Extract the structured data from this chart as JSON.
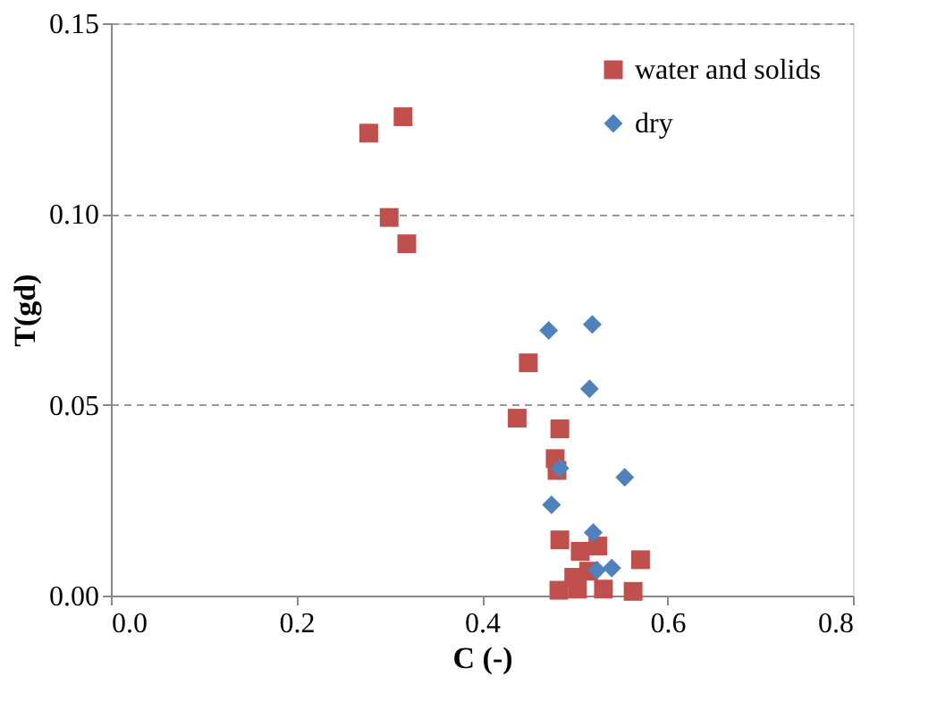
{
  "chart_data": {
    "type": "scatter",
    "xlabel": "C (-)",
    "ylabel": "T(gd)",
    "xlim": [
      0,
      0.8
    ],
    "ylim": [
      0,
      0.15
    ],
    "xticks": [
      {
        "value": 0,
        "label": "0.0"
      },
      {
        "value": 0.2,
        "label": "0.2"
      },
      {
        "value": 0.4,
        "label": "0.4"
      },
      {
        "value": 0.6,
        "label": "0.6"
      },
      {
        "value": 0.8,
        "label": "0.8"
      }
    ],
    "yticks": [
      {
        "value": 0,
        "label": "0.00"
      },
      {
        "value": 0.05,
        "label": "0.05"
      },
      {
        "value": 0.1,
        "label": "0.10"
      },
      {
        "value": 0.15,
        "label": "0.15"
      }
    ],
    "grid": "y",
    "legend": "top right",
    "series": [
      {
        "name": "water and solids",
        "color": "#c0504d",
        "marker": "square",
        "x": [
          0.315,
          0.278,
          0.3,
          0.319,
          0.45,
          0.438,
          0.484,
          0.479,
          0.481,
          0.484,
          0.506,
          0.525,
          0.571,
          0.499,
          0.503,
          0.483,
          0.531,
          0.563,
          0.515
        ],
        "values": [
          0.1255,
          0.1212,
          0.0991,
          0.0922,
          0.061,
          0.0465,
          0.0437,
          0.0359,
          0.0328,
          0.0146,
          0.0116,
          0.013,
          0.0094,
          0.0048,
          0.0017,
          0.0014,
          0.0017,
          0.0011,
          0.0064
        ]
      },
      {
        "name": "dry",
        "color": "#4f81bd",
        "marker": "diamond",
        "x": [
          0.472,
          0.519,
          0.516,
          0.484,
          0.554,
          0.475,
          0.52,
          0.524,
          0.54
        ],
        "values": [
          0.0695,
          0.0711,
          0.0542,
          0.0334,
          0.031,
          0.0238,
          0.0165,
          0.0067,
          0.0072
        ]
      }
    ]
  }
}
